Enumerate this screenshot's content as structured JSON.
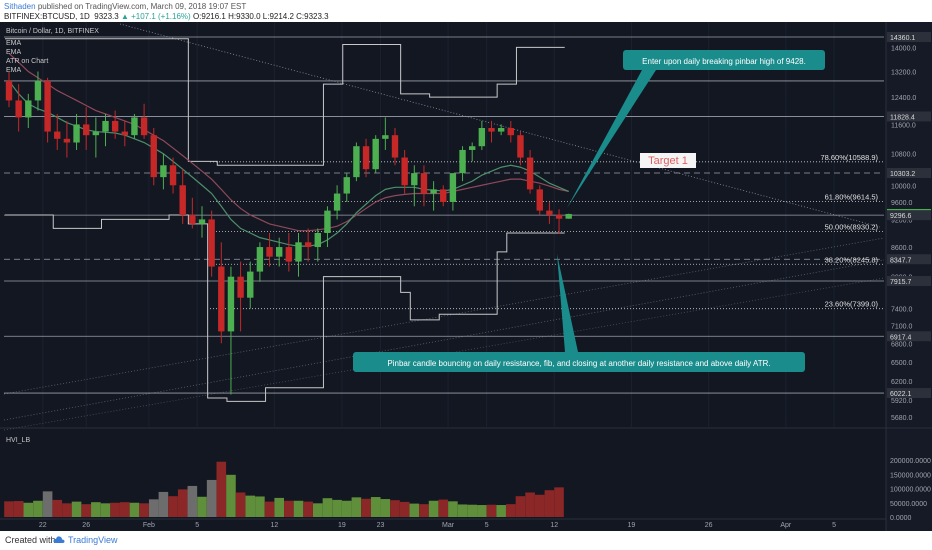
{
  "header": {
    "author": "Sithaden",
    "published": "published on TradingView.com, March 09, 2018 19:07 EST",
    "symbol": "BITFINEX:BTCUSD, 1D",
    "last": "9323.3",
    "change": "▲ +107.1 (+1.16%)",
    "ohlc": "O:9216.1 H:9330.0 L:9214.2 C:9323.3"
  },
  "footer": {
    "created": "Created with",
    "brand": "TradingView"
  },
  "legend": {
    "title": "Bitcoin / Dollar, 1D, BITFINEX",
    "items": [
      "EMA",
      "EMA",
      "ATR on Chart",
      "EMA"
    ]
  },
  "colors": {
    "background": "#131722",
    "up": "#4caf50",
    "down": "#c62828",
    "vol_up": "#5f8f3a",
    "vol_down": "#8b2727",
    "vol_neutral": "#6d6d6d",
    "atr": "#c8c8c8",
    "ema1": "#4d8f6b",
    "ema2": "#8e4a5b",
    "callout": "#1b8c8c",
    "target": "#e06060"
  },
  "chart_data": {
    "type": "candlestick",
    "x_ticks": [
      "22",
      "26",
      "Feb",
      "5",
      "12",
      "19",
      "23",
      "Mar",
      "5",
      "12",
      "19",
      "26",
      "Apr",
      "5"
    ],
    "price_ticks": [
      "14000.0",
      "13200.0",
      "12400.0",
      "11600.0",
      "10800.0",
      "10000.0",
      "9600.0",
      "9200.0",
      "8600.0",
      "8000.0",
      "7400.0",
      "7100.0",
      "6800.0",
      "6500.0",
      "6200.0",
      "5920.0",
      "5680.0"
    ],
    "price_labels": [
      {
        "value": 14360.1,
        "text": "14360.1",
        "style": "dark"
      },
      {
        "value": 11828.4,
        "text": "11828.4",
        "style": "dark"
      },
      {
        "value": 10303.2,
        "text": "10303.2",
        "style": "dark"
      },
      {
        "value": 9323.3,
        "text": "9323.3",
        "style": "green"
      },
      {
        "value": 9296.6,
        "text": "9296.6",
        "style": "dark"
      },
      {
        "value": 8347.7,
        "text": "8347.7",
        "style": "dark"
      },
      {
        "value": 7915.7,
        "text": "7915.7",
        "style": "dark"
      },
      {
        "value": 6917.4,
        "text": "6917.4",
        "style": "dark"
      },
      {
        "value": 6022.1,
        "text": "6022.1",
        "style": "dark"
      }
    ],
    "horizontal_levels": [
      14360.1,
      12900,
      11828.4,
      10303.2,
      9296.6,
      7915.7,
      6917.4,
      6022.1
    ],
    "fib_levels": [
      {
        "value": 10588.9,
        "label": "78.60%(10588.9)"
      },
      {
        "value": 9614.5,
        "label": "61.80%(9614.5)"
      },
      {
        "value": 8930.2,
        "label": "50.00%(8930.2)"
      },
      {
        "value": 8245.8,
        "label": "38.20%(8245.8)"
      },
      {
        "value": 7399.0,
        "label": "23.60%(7399.0)"
      }
    ],
    "candles": [
      {
        "o": 12900,
        "h": 13200,
        "l": 12100,
        "c": 12300
      },
      {
        "o": 12300,
        "h": 12800,
        "l": 11400,
        "c": 11800
      },
      {
        "o": 11800,
        "h": 12500,
        "l": 11500,
        "c": 12300
      },
      {
        "o": 12300,
        "h": 13200,
        "l": 12000,
        "c": 12900
      },
      {
        "o": 12900,
        "h": 13000,
        "l": 11100,
        "c": 11400
      },
      {
        "o": 11400,
        "h": 11900,
        "l": 10900,
        "c": 11200
      },
      {
        "o": 11200,
        "h": 11700,
        "l": 10700,
        "c": 11100
      },
      {
        "o": 11100,
        "h": 11900,
        "l": 10900,
        "c": 11600
      },
      {
        "o": 11600,
        "h": 12100,
        "l": 10900,
        "c": 11300
      },
      {
        "o": 11300,
        "h": 11800,
        "l": 10700,
        "c": 11400
      },
      {
        "o": 11400,
        "h": 11900,
        "l": 11000,
        "c": 11700
      },
      {
        "o": 11700,
        "h": 12000,
        "l": 11200,
        "c": 11400
      },
      {
        "o": 11400,
        "h": 11700,
        "l": 11000,
        "c": 11300
      },
      {
        "o": 11300,
        "h": 11900,
        "l": 11200,
        "c": 11800
      },
      {
        "o": 11800,
        "h": 12200,
        "l": 11200,
        "c": 11300
      },
      {
        "o": 11300,
        "h": 11500,
        "l": 10000,
        "c": 10200
      },
      {
        "o": 10200,
        "h": 10800,
        "l": 9900,
        "c": 10500
      },
      {
        "o": 10500,
        "h": 10700,
        "l": 9800,
        "c": 10000
      },
      {
        "o": 10000,
        "h": 10400,
        "l": 9100,
        "c": 9300
      },
      {
        "o": 9300,
        "h": 9700,
        "l": 9000,
        "c": 9100
      },
      {
        "o": 9100,
        "h": 9500,
        "l": 8800,
        "c": 9200
      },
      {
        "o": 9200,
        "h": 9400,
        "l": 8000,
        "c": 8200
      },
      {
        "o": 8200,
        "h": 8700,
        "l": 6800,
        "c": 7000
      },
      {
        "o": 7000,
        "h": 8200,
        "l": 6000,
        "c": 8000
      },
      {
        "o": 8000,
        "h": 8300,
        "l": 7000,
        "c": 7600
      },
      {
        "o": 7600,
        "h": 8300,
        "l": 7400,
        "c": 8100
      },
      {
        "o": 8100,
        "h": 8700,
        "l": 7900,
        "c": 8600
      },
      {
        "o": 8600,
        "h": 8900,
        "l": 8200,
        "c": 8400
      },
      {
        "o": 8400,
        "h": 8800,
        "l": 8200,
        "c": 8600
      },
      {
        "o": 8600,
        "h": 8900,
        "l": 8100,
        "c": 8300
      },
      {
        "o": 8300,
        "h": 8900,
        "l": 8000,
        "c": 8700
      },
      {
        "o": 8700,
        "h": 9000,
        "l": 8300,
        "c": 8600
      },
      {
        "o": 8600,
        "h": 9000,
        "l": 8300,
        "c": 8900
      },
      {
        "o": 8900,
        "h": 9500,
        "l": 8600,
        "c": 9400
      },
      {
        "o": 9400,
        "h": 10000,
        "l": 9200,
        "c": 9800
      },
      {
        "o": 9800,
        "h": 10300,
        "l": 9600,
        "c": 10200
      },
      {
        "o": 10200,
        "h": 11100,
        "l": 10100,
        "c": 11000
      },
      {
        "o": 11000,
        "h": 11200,
        "l": 10200,
        "c": 10400
      },
      {
        "o": 10400,
        "h": 11300,
        "l": 10300,
        "c": 11200
      },
      {
        "o": 11200,
        "h": 11800,
        "l": 10900,
        "c": 11300
      },
      {
        "o": 11300,
        "h": 11500,
        "l": 10500,
        "c": 10700
      },
      {
        "o": 10700,
        "h": 10900,
        "l": 9800,
        "c": 10000
      },
      {
        "o": 10000,
        "h": 10500,
        "l": 9500,
        "c": 10300
      },
      {
        "o": 10300,
        "h": 10500,
        "l": 9500,
        "c": 9800
      },
      {
        "o": 9800,
        "h": 10100,
        "l": 9400,
        "c": 9900
      },
      {
        "o": 9900,
        "h": 10000,
        "l": 9500,
        "c": 9600
      },
      {
        "o": 9600,
        "h": 10300,
        "l": 9400,
        "c": 10300
      },
      {
        "o": 10300,
        "h": 11000,
        "l": 10100,
        "c": 10900
      },
      {
        "o": 10900,
        "h": 11100,
        "l": 10600,
        "c": 11000
      },
      {
        "o": 11000,
        "h": 11700,
        "l": 10900,
        "c": 11500
      },
      {
        "o": 11500,
        "h": 11700,
        "l": 11100,
        "c": 11400
      },
      {
        "o": 11400,
        "h": 11600,
        "l": 11300,
        "c": 11500
      },
      {
        "o": 11500,
        "h": 11700,
        "l": 11100,
        "c": 11300
      },
      {
        "o": 11300,
        "h": 11400,
        "l": 10500,
        "c": 10700
      },
      {
        "o": 10700,
        "h": 10900,
        "l": 9800,
        "c": 9900
      },
      {
        "o": 9900,
        "h": 10000,
        "l": 9300,
        "c": 9400
      },
      {
        "o": 9400,
        "h": 9600,
        "l": 9100,
        "c": 9300
      },
      {
        "o": 9300,
        "h": 9430,
        "l": 8880,
        "c": 9216
      },
      {
        "o": 9216.1,
        "h": 9330,
        "l": 9214.2,
        "c": 9323.3
      }
    ],
    "ema_fast": [
      12900,
      12500,
      12200,
      12050,
      11950,
      11800,
      11650,
      11550,
      11450,
      11400,
      11380,
      11360,
      11300,
      11200,
      11100,
      10950,
      10800,
      10600,
      10400,
      10200,
      10000,
      9800,
      9500,
      9200,
      9000,
      8900,
      8800,
      8750,
      8700,
      8650,
      8620,
      8620,
      8650,
      8750,
      8900,
      9100,
      9350,
      9550,
      9750,
      9900,
      9950,
      9950,
      9950,
      9900,
      9880,
      9860,
      9900,
      10000,
      10100,
      10250,
      10350,
      10450,
      10500,
      10450,
      10350,
      10200,
      10050,
      9950,
      9850
    ],
    "ema_slow": [
      13800,
      13500,
      13200,
      13000,
      12800,
      12600,
      12450,
      12300,
      12150,
      12000,
      11900,
      11800,
      11700,
      11600,
      11450,
      11300,
      11150,
      10950,
      10750,
      10550,
      10350,
      10150,
      9900,
      9650,
      9450,
      9300,
      9200,
      9100,
      9050,
      9000,
      8950,
      8950,
      8970,
      9000,
      9050,
      9150,
      9300,
      9450,
      9600,
      9700,
      9750,
      9780,
      9800,
      9800,
      9800,
      9800,
      9850,
      9900,
      9950,
      10000,
      10050,
      10100,
      10150,
      10150,
      10100,
      10050,
      9980,
      9900,
      9850
    ],
    "atr_steps": [
      {
        "i0": 0,
        "i1": 5,
        "v": 9300
      },
      {
        "i0": 5,
        "i1": 10,
        "v": 9000
      },
      {
        "i0": 10,
        "i1": 17,
        "v": 9200
      },
      {
        "i0": 17,
        "i1": 19,
        "v": 9300
      },
      {
        "i0": 19,
        "i1": 21,
        "v": 9100
      },
      {
        "i0": 21,
        "i1": 23,
        "v": 5950
      },
      {
        "i0": 23,
        "i1": 27,
        "v": 5900
      },
      {
        "i0": 27,
        "i1": 33,
        "v": 6100
      },
      {
        "i0": 33,
        "i1": 41,
        "v": 8000
      },
      {
        "i0": 41,
        "i1": 42,
        "v": 7700
      },
      {
        "i0": 42,
        "i1": 45,
        "v": 7200
      },
      {
        "i0": 45,
        "i1": 51,
        "v": 7300
      },
      {
        "i0": 51,
        "i1": 52,
        "v": 8500
      },
      {
        "i0": 52,
        "i1": 58,
        "v": 8900
      }
    ],
    "atr_upper_steps": [
      {
        "i0": 0,
        "i1": 19,
        "v": 14300
      },
      {
        "i0": 19,
        "i1": 22,
        "v": 10600
      },
      {
        "i0": 22,
        "i1": 33,
        "v": 10500
      },
      {
        "i0": 33,
        "i1": 35,
        "v": 12800
      },
      {
        "i0": 35,
        "i1": 41,
        "v": 14100
      },
      {
        "i0": 41,
        "i1": 44,
        "v": 12500
      },
      {
        "i0": 44,
        "i1": 51,
        "v": 12400
      },
      {
        "i0": 51,
        "i1": 53,
        "v": 12800
      },
      {
        "i0": 53,
        "i1": 58,
        "v": 14000
      }
    ],
    "volume_ticks": [
      "200000.0000",
      "150000.0000",
      "100000.0000",
      "50000.0000",
      "0.0000"
    ],
    "volume": [
      55000,
      56000,
      50000,
      57000,
      90000,
      60000,
      48000,
      54000,
      45000,
      52000,
      48000,
      50000,
      52000,
      50000,
      48000,
      62000,
      88000,
      73000,
      97000,
      109000,
      71000,
      130000,
      194000,
      148000,
      86000,
      75000,
      72000,
      54000,
      67000,
      57000,
      57000,
      54000,
      48000,
      66000,
      60000,
      57000,
      69000,
      64000,
      70000,
      63000,
      59000,
      53000,
      47000,
      45000,
      57000,
      61000,
      55000,
      44000,
      43000,
      42000,
      43000,
      42000,
      45000,
      73000,
      86000,
      78000,
      94000,
      104000,
      0
    ],
    "volume_label": "HVI_LB"
  },
  "annotations": {
    "top_callout": "Enter upon daily breaking pinbar high of 9428.",
    "bottom_callout": "Pinbar candle bouncing on daily resistance, fib, and closing at another daily resistance and above daily ATR.",
    "target": "Target 1"
  }
}
